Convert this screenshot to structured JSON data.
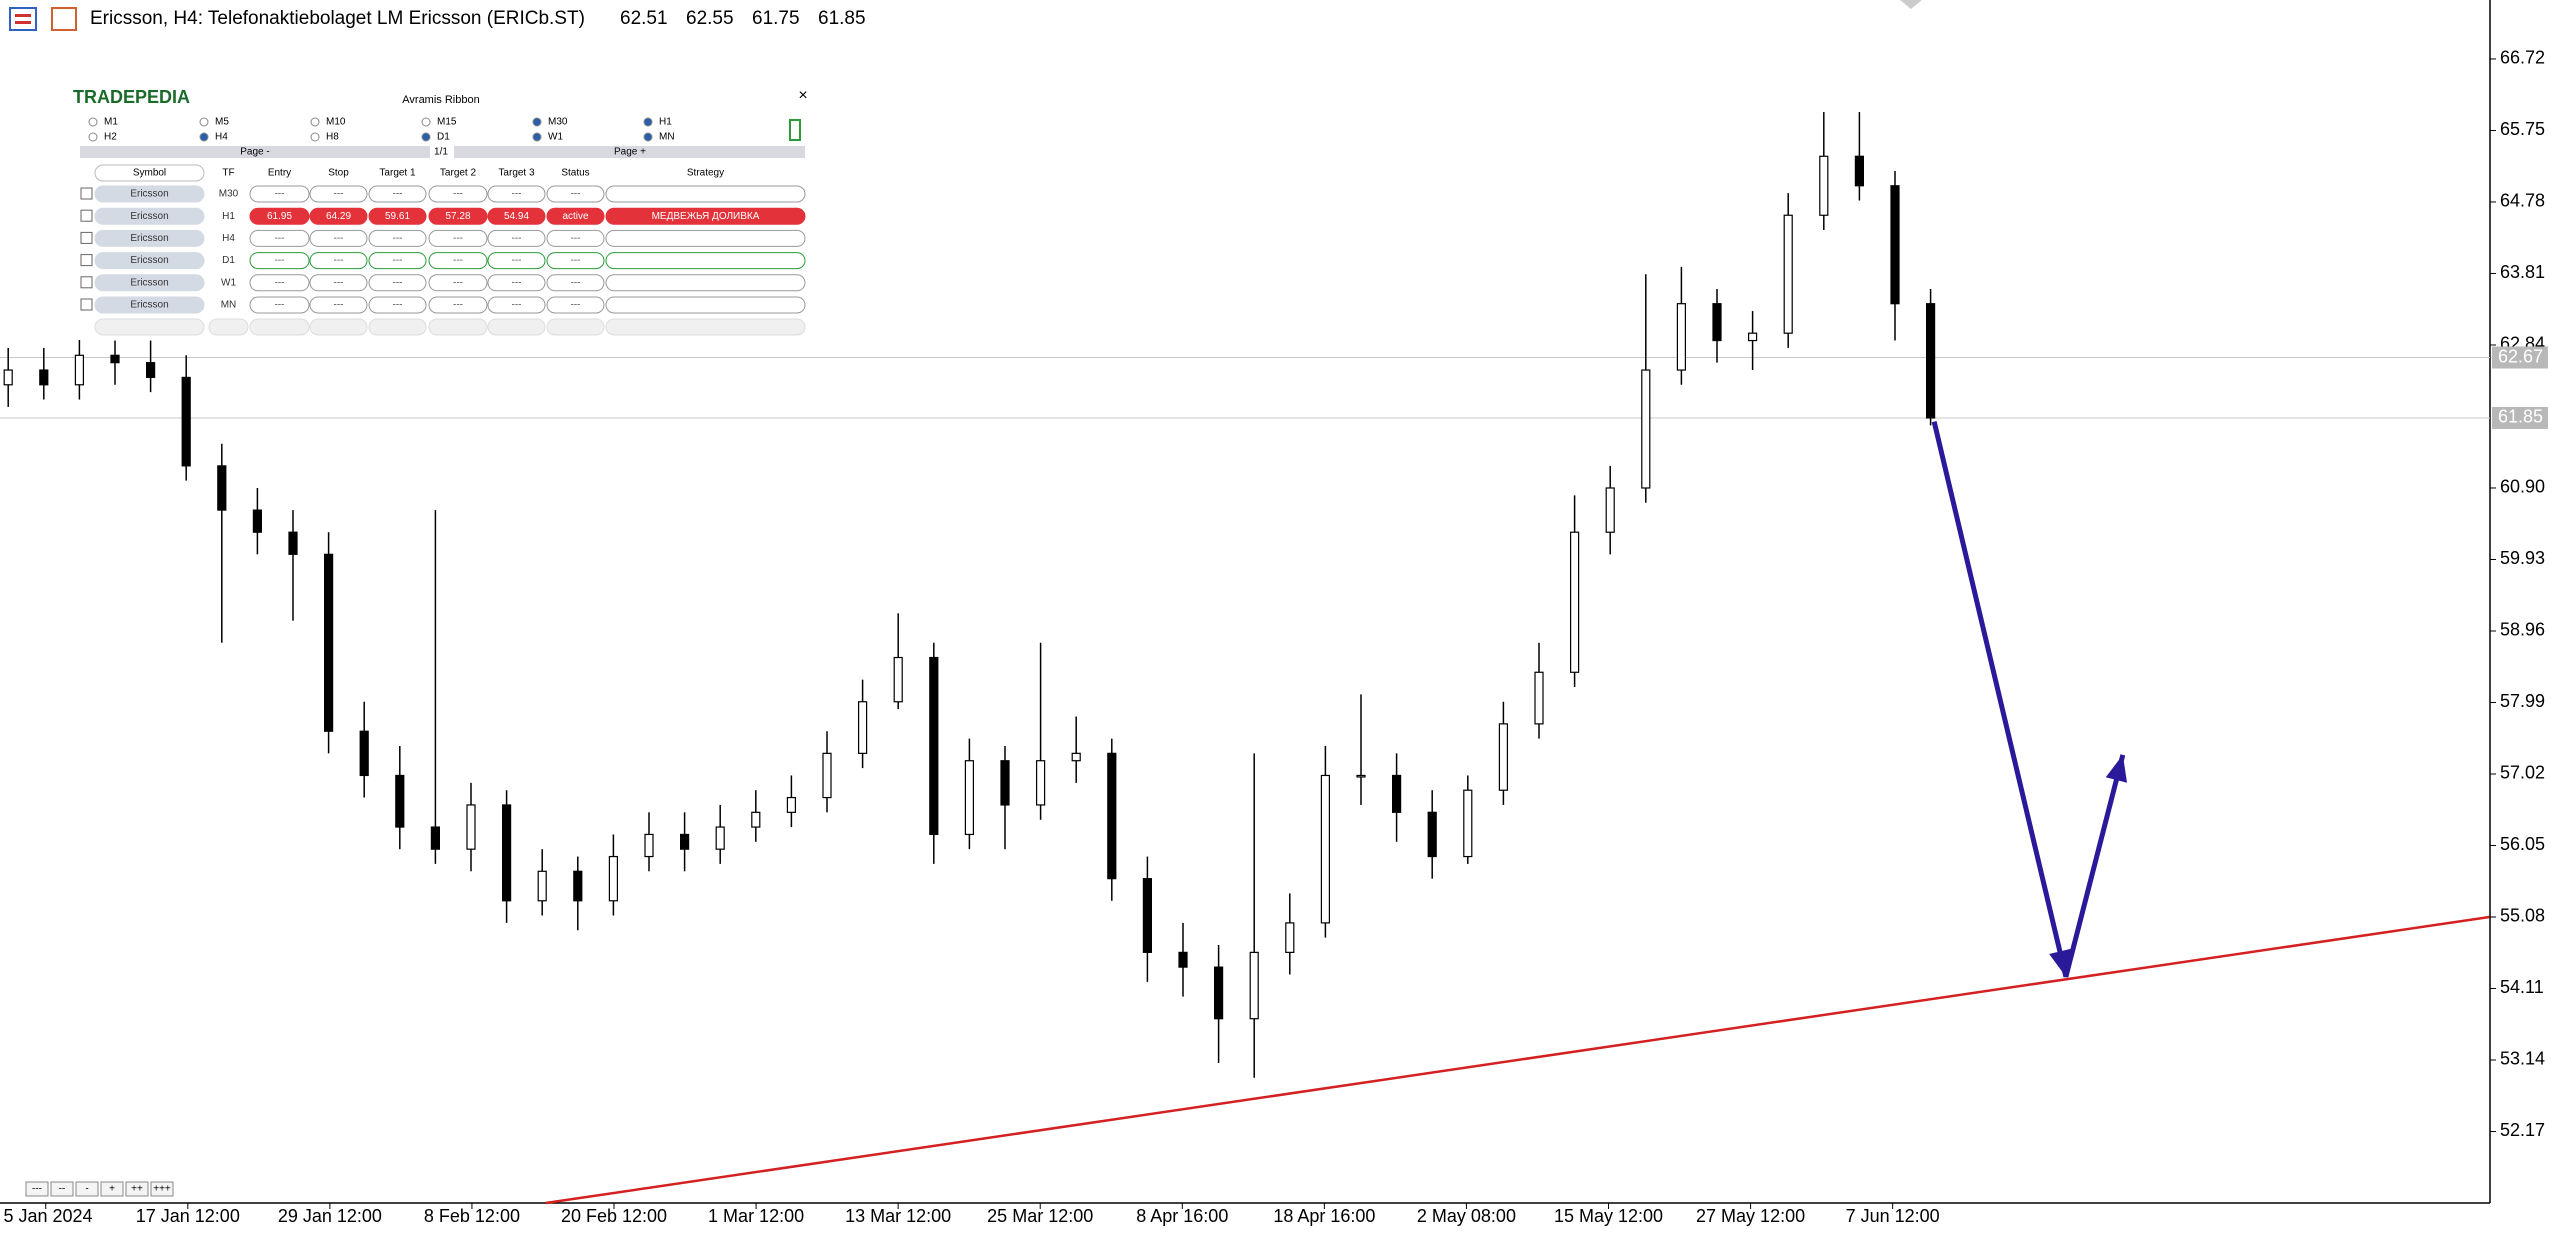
{
  "chart_data": {
    "type": "candlestick",
    "title": "Ericsson, H4:  Telefonaktiebolaget LM Ericsson (ERICb.ST)",
    "ohlc": [
      62.51,
      62.55,
      61.75,
      61.85
    ],
    "categories": [
      "5 Jan 2024",
      "17 Jan 12:00",
      "29 Jan 12:00",
      "8 Feb 12:00",
      "20 Feb 12:00",
      "1 Mar 12:00",
      "13 Mar 12:00",
      "25 Mar 12:00",
      "8 Apr 16:00",
      "18 Apr 16:00",
      "2 May 08:00",
      "15 May 12:00",
      "27 May 12:00",
      "7 Jun 12:00"
    ],
    "open": [
      62.3,
      62.5,
      62.3,
      62.7,
      62.6,
      62.4,
      61.2,
      60.6,
      60.3,
      60.0,
      57.6,
      57.0,
      56.3,
      56.0,
      56.6,
      55.3,
      55.7,
      55.3,
      55.9,
      56.2,
      56.0,
      56.3,
      56.5,
      56.7,
      57.3,
      58.0,
      58.6,
      56.2,
      57.2,
      56.6,
      57.2,
      57.3,
      55.6,
      54.6,
      54.4,
      53.7,
      54.6,
      55.0,
      57.0,
      57.0,
      56.5,
      55.9,
      56.8,
      57.7,
      58.4,
      60.3,
      60.9,
      62.5,
      63.4,
      62.9,
      63.0,
      64.6,
      65.4,
      65.0,
      63.4
    ],
    "high": [
      62.8,
      62.8,
      63.0,
      62.9,
      62.9,
      62.7,
      61.5,
      60.9,
      60.6,
      60.3,
      58.0,
      57.4,
      60.6,
      56.9,
      56.8,
      56.0,
      55.9,
      56.2,
      56.5,
      56.5,
      56.6,
      56.8,
      57.0,
      57.6,
      58.3,
      59.2,
      58.8,
      57.5,
      57.4,
      58.8,
      57.8,
      57.5,
      55.9,
      55.0,
      54.7,
      57.3,
      55.4,
      57.4,
      58.1,
      57.3,
      56.8,
      57.0,
      58.0,
      58.8,
      60.8,
      61.2,
      63.8,
      63.9,
      63.6,
      63.3,
      64.9,
      66.0,
      66.0,
      65.2,
      63.6
    ],
    "low": [
      62.0,
      62.1,
      62.1,
      62.3,
      62.2,
      61.0,
      58.8,
      60.0,
      59.1,
      57.3,
      56.7,
      56.0,
      55.8,
      55.7,
      55.0,
      55.1,
      54.9,
      55.1,
      55.7,
      55.7,
      55.8,
      56.1,
      56.3,
      56.5,
      57.1,
      57.9,
      55.8,
      56.0,
      56.0,
      56.4,
      56.9,
      55.3,
      54.2,
      54.0,
      53.1,
      52.9,
      54.3,
      54.8,
      56.6,
      56.1,
      55.6,
      55.8,
      56.6,
      57.5,
      58.2,
      60.0,
      60.7,
      62.3,
      62.6,
      62.5,
      62.8,
      64.4,
      64.8,
      62.9,
      61.75
    ],
    "close": [
      62.5,
      62.3,
      62.7,
      62.6,
      62.4,
      61.2,
      60.6,
      60.3,
      60.0,
      57.6,
      57.0,
      56.3,
      56.0,
      56.6,
      55.3,
      55.7,
      55.3,
      55.9,
      56.2,
      56.0,
      56.3,
      56.5,
      56.7,
      57.3,
      58.0,
      58.6,
      56.2,
      57.2,
      56.6,
      57.2,
      57.3,
      55.6,
      54.6,
      54.4,
      53.7,
      54.6,
      55.0,
      57.0,
      57.0,
      56.5,
      55.9,
      56.8,
      57.7,
      58.4,
      60.3,
      60.9,
      62.5,
      63.4,
      62.9,
      63.0,
      64.6,
      65.4,
      65.0,
      63.4,
      61.85
    ],
    "ylim": [
      51.2,
      67.52
    ],
    "yticks": [
      66.72,
      65.75,
      64.78,
      63.81,
      62.84,
      {
        "value": 60.9,
        "label": "60.90"
      },
      59.93,
      58.96,
      57.99,
      57.02,
      56.05,
      55.08,
      54.11,
      53.14,
      52.17
    ],
    "price_lines": [
      62.67,
      61.85
    ],
    "trendline": {
      "color": "#d42020",
      "x": [
        15.1,
        69.7
      ],
      "y": [
        51.2,
        55.08
      ]
    },
    "arrow": {
      "color": "#2a1a9a",
      "x": [
        54.1,
        57.8,
        59.4
      ],
      "y": [
        61.8,
        54.27,
        57.28
      ]
    }
  },
  "panel": {
    "brand": "TRADEPEDIA",
    "title": "Avramis Ribbon",
    "close": "×",
    "timeframes": [
      "M1",
      "M5",
      "M10",
      "M15",
      "M30",
      "H1",
      "H2",
      "H4",
      "H8",
      "D1",
      "W1",
      "MN"
    ],
    "checked": [
      false,
      false,
      false,
      false,
      true,
      true,
      false,
      true,
      false,
      true,
      true,
      true
    ],
    "page_prev": "Page -",
    "page_count": "1/1",
    "page_next": "Page +",
    "columns": [
      "Symbol",
      "TF",
      "Entry",
      "Stop",
      "Target 1",
      "Target 2",
      "Target 3",
      "Status",
      "Strategy"
    ],
    "rows": [
      {
        "cells": [
          "Ericsson",
          "M30",
          "---",
          "---",
          "---",
          "---",
          "---",
          "---"
        ]
      },
      {
        "cells": [
          "Ericsson",
          "H1",
          "61.95",
          "64.29",
          "59.61",
          "57.28",
          "54.94",
          "active"
        ],
        "strategy": "МЕДВЕЖЬЯ ДОЛИВКА"
      },
      {
        "cells": [
          "Ericsson",
          "H4",
          "---",
          "---",
          "---",
          "---",
          "---",
          "---"
        ]
      },
      {
        "cells": [
          "Ericsson",
          "D1",
          "---",
          "---",
          "---",
          "---",
          "---",
          "---"
        ]
      },
      {
        "cells": [
          "Ericsson",
          "W1",
          "---",
          "---",
          "---",
          "---",
          "---",
          "---"
        ]
      },
      {
        "cells": [
          "Ericsson",
          "MN",
          "---",
          "---",
          "---",
          "---",
          "---",
          "---"
        ]
      }
    ]
  },
  "zoom_buttons": [
    "---",
    "--",
    "-",
    "+",
    "++",
    "+++"
  ]
}
